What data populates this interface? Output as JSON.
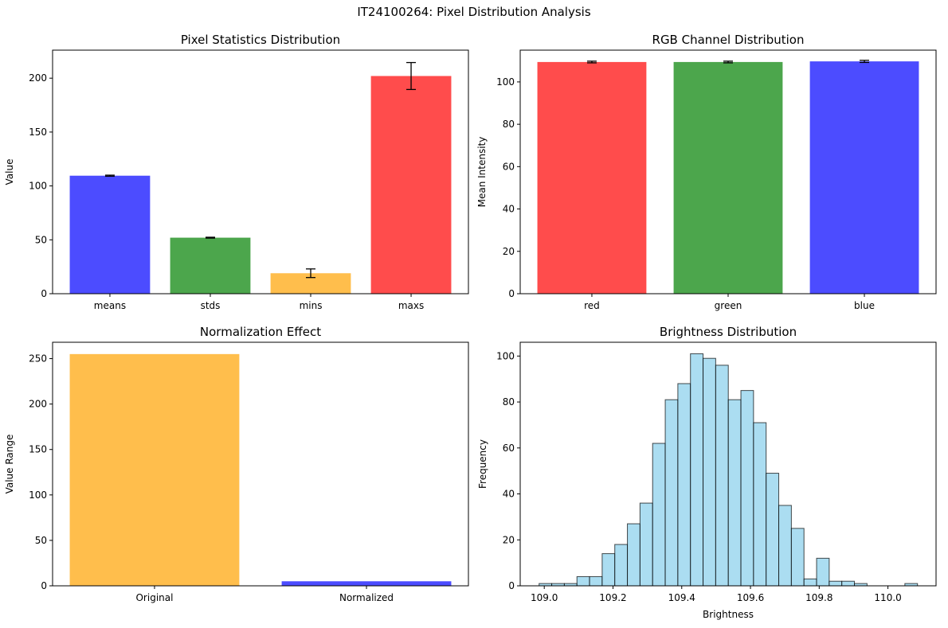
{
  "figure": {
    "suptitle": "IT24100264: Pixel Distribution Analysis"
  },
  "chart_data": [
    {
      "type": "bar",
      "title": "Pixel Statistics Distribution",
      "xlabel": "",
      "ylabel": "Value",
      "categories": [
        "means",
        "stds",
        "mins",
        "maxs"
      ],
      "values": [
        109.5,
        52,
        19,
        202
      ],
      "errors": [
        0.5,
        0.4,
        4,
        12.5
      ],
      "colors": [
        "#4c4cff",
        "#4ca64c",
        "#ffbe4c",
        "#ff4c4c"
      ],
      "ylim": [
        0,
        226
      ],
      "yticks": [
        0,
        50,
        100,
        150,
        200
      ],
      "grid": false
    },
    {
      "type": "bar",
      "title": "RGB Channel Distribution",
      "xlabel": "",
      "ylabel": "Mean Intensity",
      "categories": [
        "red",
        "green",
        "blue"
      ],
      "values": [
        109.4,
        109.4,
        109.7
      ],
      "errors": [
        0.4,
        0.4,
        0.5
      ],
      "colors": [
        "#ff4c4c",
        "#4ca64c",
        "#4c4cff"
      ],
      "ylim": [
        0,
        115
      ],
      "yticks": [
        0,
        20,
        40,
        60,
        80,
        100
      ],
      "grid": false
    },
    {
      "type": "bar",
      "title": "Normalization Effect",
      "xlabel": "",
      "ylabel": "Value Range",
      "categories": [
        "Original",
        "Normalized"
      ],
      "values": [
        255,
        5
      ],
      "colors": [
        "#ffbe4c",
        "#4c4cff"
      ],
      "ylim": [
        0,
        268
      ],
      "yticks": [
        0,
        50,
        100,
        150,
        200,
        250
      ],
      "grid": false
    },
    {
      "type": "histogram",
      "title": "Brightness Distribution",
      "xlabel": "Brightness",
      "ylabel": "Frequency",
      "bin_start": 108.985,
      "bin_width": 0.0367,
      "counts": [
        1,
        1,
        1,
        4,
        4,
        14,
        18,
        27,
        36,
        62,
        81,
        88,
        101,
        99,
        96,
        81,
        85,
        71,
        49,
        35,
        25,
        3,
        12,
        2,
        2,
        1,
        0,
        0,
        0,
        1
      ],
      "color": "#87ceeb",
      "xlim": [
        108.93,
        110.14
      ],
      "ylim": [
        0,
        106
      ],
      "xticks": [
        109.0,
        109.2,
        109.4,
        109.6,
        109.8,
        110.0
      ],
      "yticks": [
        0,
        20,
        40,
        60,
        80,
        100
      ],
      "grid": false
    }
  ]
}
